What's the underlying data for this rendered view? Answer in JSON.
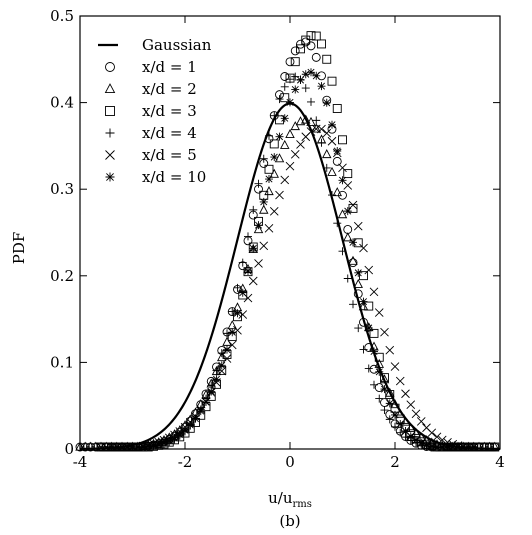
{
  "chart_data": {
    "type": "scatter",
    "xlabel": "u/u",
    "xlabel_sub": "rms",
    "ylabel": "PDF",
    "caption": "(b)",
    "xlim": [
      -4,
      4
    ],
    "ylim": [
      0,
      0.5
    ],
    "xticks": [
      -4,
      -2,
      0,
      2,
      4
    ],
    "yticks": [
      0,
      0.1,
      0.2,
      0.3,
      0.4,
      0.5
    ],
    "ytick_labels": [
      "0",
      "0.1",
      "0.2",
      "0.3",
      "0.4",
      "0.5"
    ],
    "grid": false,
    "legend_position": "top-left",
    "gaussian": {
      "name": "Gaussian",
      "mean": 0,
      "std": 1
    },
    "series": [
      {
        "name": "x/d = 1",
        "marker": "circle",
        "x_range": [
          -4,
          4.3
        ],
        "step": 0.1,
        "peak_x": 0.3,
        "peak": 0.47,
        "sigma_left": 0.95,
        "sigma_right": 0.72
      },
      {
        "name": "x/d = 2",
        "marker": "triangle",
        "x_range": [
          -4,
          4.0
        ],
        "step": 0.1,
        "peak_x": 0.3,
        "peak": 0.38,
        "sigma_left": 1.0,
        "sigma_right": 0.85
      },
      {
        "name": "x/d = 3",
        "marker": "square",
        "x_range": [
          -3.6,
          4.0
        ],
        "step": 0.1,
        "peak_x": 0.45,
        "peak": 0.478,
        "sigma_left": 0.96,
        "sigma_right": 0.72
      },
      {
        "name": "x/d = 4",
        "marker": "plus",
        "x_range": [
          -3.4,
          3.5
        ],
        "step": 0.1,
        "peak_x": 0.1,
        "peak": 0.43,
        "sigma_left": 0.85,
        "sigma_right": 0.8
      },
      {
        "name": "x/d = 5",
        "marker": "cross",
        "x_range": [
          -3.6,
          3.4
        ],
        "step": 0.1,
        "peak_x": 0.55,
        "peak": 0.37,
        "sigma_left": 1.1,
        "sigma_right": 0.88
      },
      {
        "name": "x/d = 10",
        "marker": "asterisk",
        "x_range": [
          -3.4,
          3.5
        ],
        "step": 0.1,
        "peak_x": 0.4,
        "peak": 0.435,
        "sigma_left": 0.98,
        "sigma_right": 0.73
      }
    ]
  }
}
